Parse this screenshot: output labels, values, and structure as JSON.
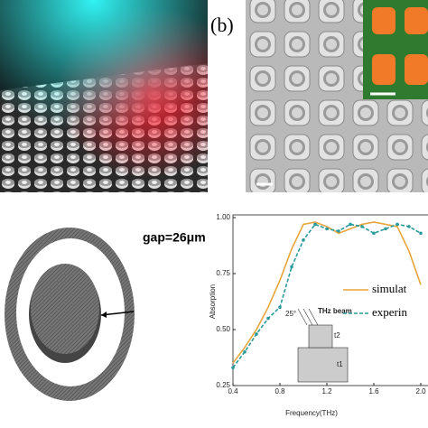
{
  "panel_b_label": "(b)",
  "gap_label": "gap=26μm",
  "chart_data": {
    "type": "line",
    "ylabel": "Absorption",
    "xlabel": "Frequency(THz)",
    "x": [
      0.4,
      0.5,
      0.6,
      0.7,
      0.8,
      0.9,
      1.0,
      1.1,
      1.2,
      1.3,
      1.4,
      1.5,
      1.6,
      1.7,
      1.8,
      1.9,
      2.0
    ],
    "series": [
      {
        "name": "simulat",
        "color": "#e8a53c",
        "dash": false,
        "values": [
          0.35,
          0.42,
          0.5,
          0.6,
          0.72,
          0.86,
          0.97,
          0.98,
          0.96,
          0.93,
          0.95,
          0.97,
          0.98,
          0.97,
          0.96,
          0.85,
          0.7
        ]
      },
      {
        "name": "experin",
        "color": "#2a9a9a",
        "dash": true,
        "values": [
          0.33,
          0.4,
          0.48,
          0.55,
          0.6,
          0.78,
          0.9,
          0.97,
          0.95,
          0.94,
          0.97,
          0.96,
          0.93,
          0.95,
          0.97,
          0.96,
          0.93
        ]
      }
    ],
    "xlim": [
      0.4,
      2.05
    ],
    "ylim": [
      0.25,
      1.0
    ],
    "xticks": [
      0.4,
      0.8,
      1.2,
      1.6,
      {
        "value": 2,
        "label": "2.0"
      }
    ],
    "yticks": [
      {
        "value": 0.25,
        "label": "0.25"
      },
      {
        "value": 0.5,
        "label": "0.50"
      },
      {
        "value": 0.75,
        "label": "0.75"
      },
      {
        "value": 1,
        "label": "1.00"
      }
    ],
    "grid": false,
    "inset_labels": {
      "angle": "25°",
      "beam": "THz beam",
      "t2": "t2",
      "t1": "t1"
    }
  }
}
